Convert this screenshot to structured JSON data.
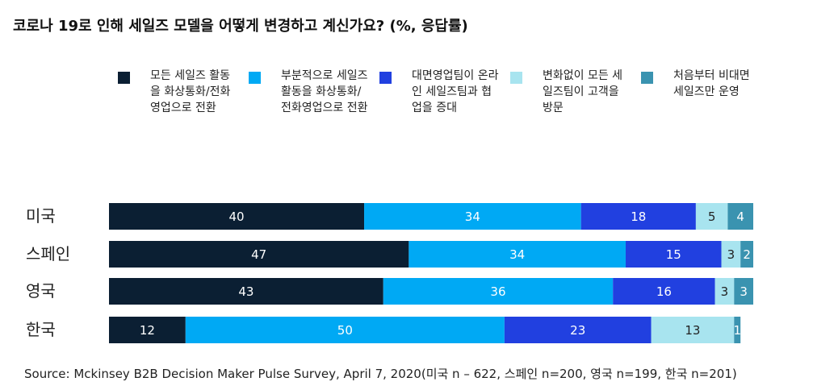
{
  "chart_data": {
    "type": "stacked-bar-horizontal",
    "title": "코로나 19로 인해 세일즈 모델을 어떻게 변경하고 계신가요? (%, 응답률)",
    "categories": [
      "미국",
      "스페인",
      "영국",
      "한국"
    ],
    "series": [
      {
        "name": "모든 세일즈 활동을 화상통화/전화영업으로 전환",
        "color": "#0b1f33",
        "values": [
          40,
          47,
          43,
          12
        ]
      },
      {
        "name": "부분적으로 세일즈 활동을 화상통화/전화영업으로 전환",
        "color": "#00a9f4",
        "values": [
          34,
          34,
          36,
          50
        ]
      },
      {
        "name": "대면영업팀이 온라인 세일즈팀과 협업을 증대",
        "color": "#2140e0",
        "values": [
          18,
          15,
          16,
          23
        ]
      },
      {
        "name": "변화없이 모든 세일즈팀이 고객을 방문",
        "color": "#a8e4ef",
        "values": [
          5,
          3,
          3,
          13
        ]
      },
      {
        "name": "처음부터 비대면 세일즈만 운영",
        "color": "#3a93b0",
        "values": [
          4,
          2,
          3,
          1
        ]
      }
    ],
    "xlim": [
      0,
      101
    ],
    "source": "Source: Mckinsey B2B Decision Maker Pulse Survey, April 7, 2020(미국 n – 622, 스페인 n=200, 영국 n=199, 한국 n=201)"
  }
}
